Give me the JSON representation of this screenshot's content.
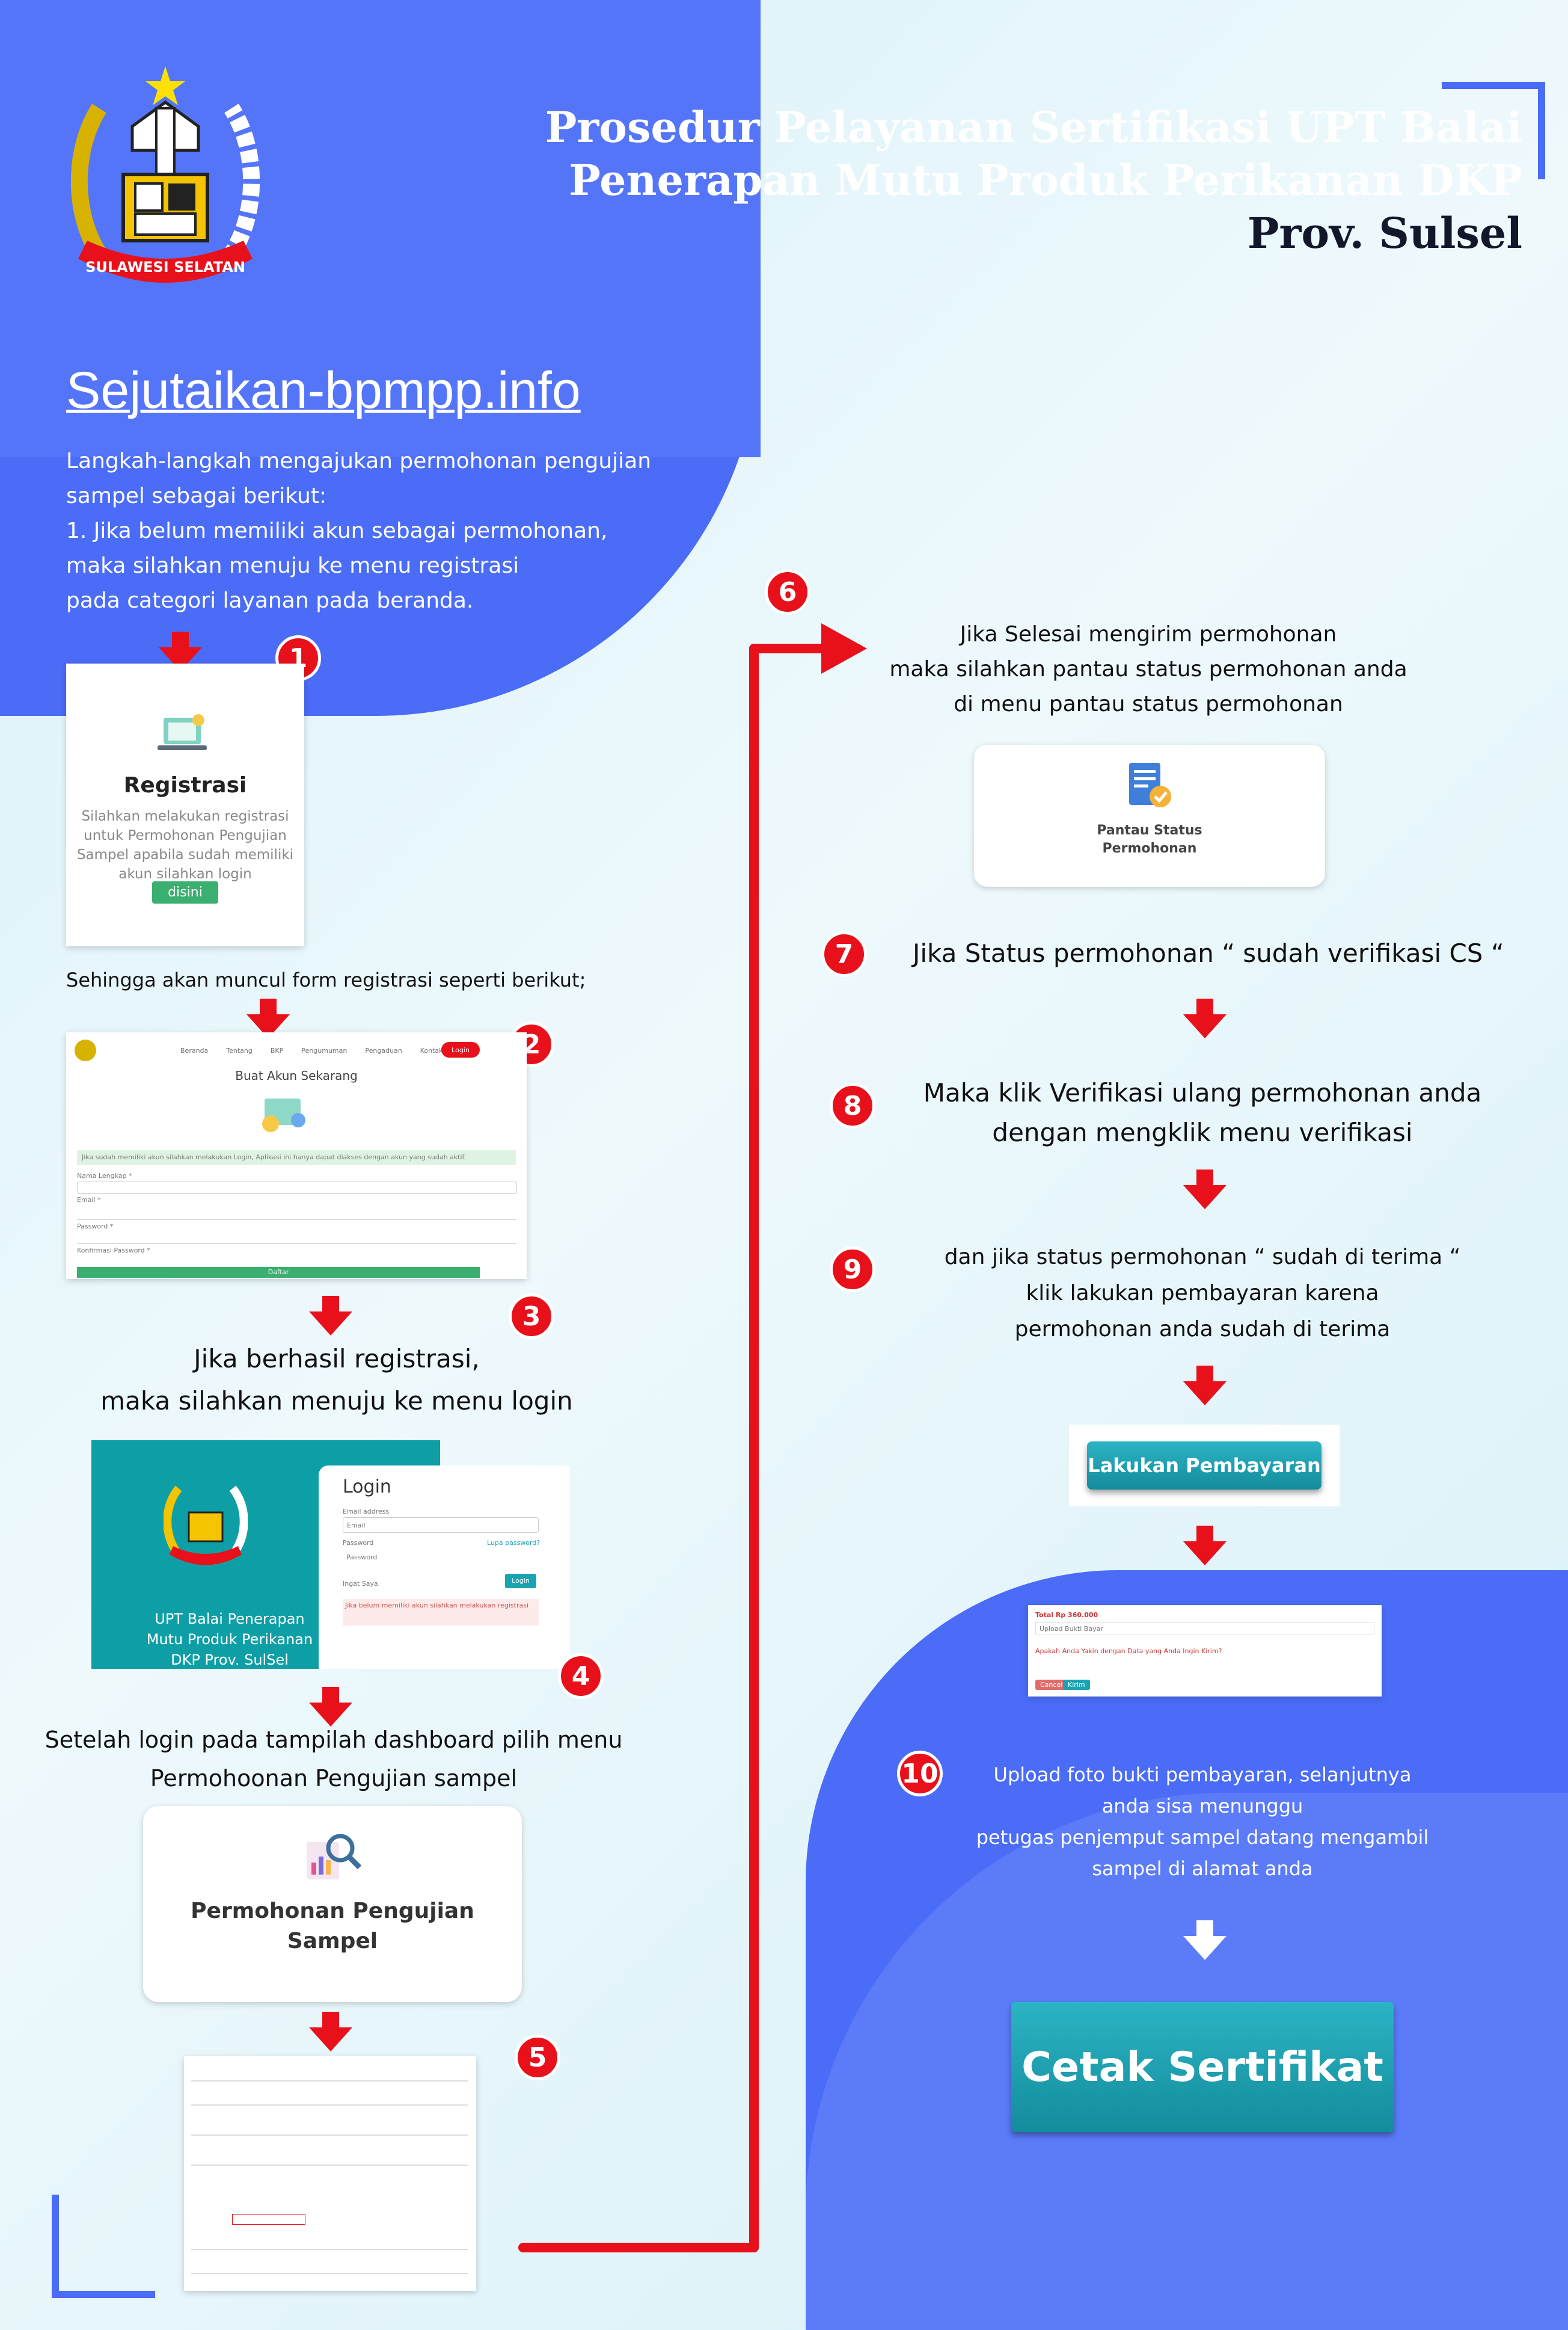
{
  "header": {
    "title_lines": [
      "Prosedur Pelayanan Sertifikasi UPT Balai",
      "Penerapan Mutu Produk Perikanan DKP",
      "Prov. Sulsel"
    ],
    "logo_banner": "SULAWESI SELATAN"
  },
  "site": "Sejutaikan-bpmpp.info",
  "intro": {
    "line1": "Langkah-langkah mengajukan permohonan pengujian",
    "line2": "sampel sebagai berikut:",
    "line3": "1. Jika belum memiliki akun sebagai permohonan,",
    "line4": "maka silahkan menuju ke menu registrasi",
    "line5": "pada categori layanan pada beranda."
  },
  "badges": [
    "1",
    "2",
    "3",
    "4",
    "5",
    "6",
    "7",
    "8",
    "9",
    "10"
  ],
  "registrasi_card": {
    "title": "Registrasi",
    "desc_lines": [
      "Silahkan melakukan registrasi",
      "untuk Permohonan Pengujian",
      "Sampel apabila sudah memiliki",
      "akun silahkan login"
    ],
    "button": "disini"
  },
  "step2_caption": "Sehingga akan muncul form registrasi seperti berikut;",
  "reg_form": {
    "nav": [
      "Beranda",
      "Tentang",
      "BKP",
      "Pengumuman",
      "Pengaduan",
      "Kontak Kami"
    ],
    "nav_button": "Login",
    "heading": "Buat Akun Sekarang",
    "notice": "Jika sudah memiliki akun silahkan melakukan Login, Aplikasi ini hanya dapat diakses dengan akun yang sudah aktif.",
    "labels": [
      "Nama Lengkap *",
      "Email *",
      "Password *",
      "Konfirmasi Password *"
    ],
    "submit": "Daftar"
  },
  "step3_text": [
    "Jika berhasil registrasi,",
    "maka silahkan menuju ke menu login"
  ],
  "login_card": {
    "left_lines": [
      "UPT Balai Penerapan",
      "Mutu Produk Perikanan",
      "DKP Prov. SulSel"
    ],
    "title": "Login",
    "email_label": "Email address",
    "email_placeholder": "Email",
    "password_label": "Password",
    "forgot": "Lupa password?",
    "password_placeholder": "Password",
    "remember": "Ingat Saya",
    "login_button": "Login",
    "note": "Jika belum memiliki akun silahkan melakukan registrasi"
  },
  "step4_text": [
    "Setelah login pada tampilah dashboard pilih menu",
    "Permohoonan Pengujian sampel"
  ],
  "permohonan_card": {
    "lines": [
      "Permohonan Pengujian",
      "Sampel"
    ]
  },
  "step6_text": [
    "Jika Selesai mengirim permohonan",
    "maka silahkan pantau status permohonan anda",
    "di menu pantau status permohonan"
  ],
  "pantau_card": {
    "lines": [
      "Pantau Status",
      "Permohonan"
    ]
  },
  "step7_text": "Jika Status permohonan “ sudah verifikasi CS “",
  "step8_text": [
    "Maka klik Verifikasi ulang permohonan anda",
    "dengan mengklik menu verifikasi"
  ],
  "step9_text": [
    "dan jika status permohonan “ sudah di terima “",
    "klik lakukan pembayaran karena",
    "permohonan anda sudah di terima"
  ],
  "pay_button": "Lakukan Pembayaran",
  "upload_panel": {
    "label": "Total Rp 360.000",
    "field": "Upload Bukti Bayar",
    "warn": "Apakah Anda Yakin dengan Data yang Anda Ingin Kirim?",
    "cancel": "Cancel",
    "ok": "Kirim"
  },
  "step10_text": [
    "Upload foto bukti pembayaran, selanjutnya",
    "anda sisa menunggu",
    "petugas penjemput sampel datang mengambil",
    "sampel di alamat anda"
  ],
  "cetak_button": "Cetak Sertifikat",
  "colors": {
    "blue": "#4a6cf7",
    "red": "#e8101a",
    "teal": "#1aa3b3",
    "bg": "#e3f5fa"
  }
}
